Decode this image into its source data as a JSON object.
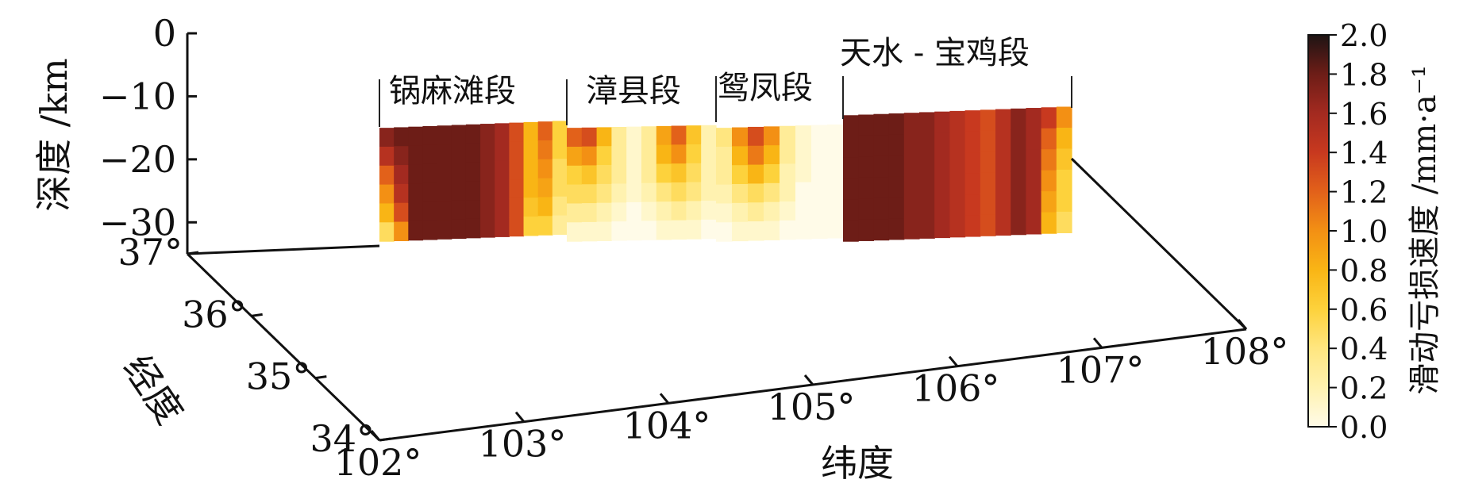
{
  "chart_data": {
    "type": "heatmap",
    "title": "",
    "depth_axis": {
      "label": "深度 /km",
      "ticks": [
        0,
        -10,
        -20,
        -30
      ],
      "tick_labels": [
        "0",
        "−10",
        "−20",
        "−30"
      ],
      "range": [
        -35,
        0
      ]
    },
    "longitude_axis": {
      "label": "纬度",
      "ticks": [
        102,
        103,
        104,
        105,
        106,
        107,
        108
      ],
      "tick_labels": [
        "102°",
        "103°",
        "104°",
        "105°",
        "106°",
        "107°",
        "108°"
      ],
      "range": [
        102,
        108
      ]
    },
    "latitude_axis": {
      "label": "经度",
      "ticks": [
        37,
        36,
        35,
        34
      ],
      "tick_labels": [
        "37°",
        "36°",
        "35°",
        "34°"
      ],
      "range": [
        34,
        37
      ]
    },
    "colorbar": {
      "label": "滑动亏损速度 /mm·a⁻¹",
      "range": [
        0,
        2.0
      ],
      "ticks": [
        "0.0",
        "0.2",
        "0.4",
        "0.6",
        "0.8",
        "1.0",
        "1.2",
        "1.4",
        "1.6",
        "1.8",
        "2.0"
      ],
      "colors": [
        "#fffbe8",
        "#fff2b0",
        "#ffe680",
        "#fdd23c",
        "#f9b515",
        "#f39014",
        "#e2611a",
        "#c8391f",
        "#a32a20",
        "#6d1d17",
        "#1e1414"
      ]
    },
    "segments": [
      {
        "name": "锅麻滩段",
        "depth_top": -15,
        "depth_bottom": -33,
        "columns": [
          [
            1.7,
            1.5,
            1.2,
            1.0,
            0.8,
            0.5
          ],
          [
            1.8,
            1.7,
            1.6,
            1.5,
            1.3,
            1.0
          ],
          [
            1.8,
            1.8,
            1.8,
            1.8,
            1.8,
            1.8
          ],
          [
            1.8,
            1.8,
            1.8,
            1.8,
            1.8,
            1.8
          ],
          [
            1.8,
            1.8,
            1.8,
            1.8,
            1.8,
            1.8
          ],
          [
            1.8,
            1.8,
            1.8,
            1.8,
            1.8,
            1.8
          ],
          [
            1.8,
            1.8,
            1.8,
            1.8,
            1.8,
            1.8
          ],
          [
            1.7,
            1.7,
            1.7,
            1.7,
            1.7,
            1.7
          ],
          [
            1.6,
            1.6,
            1.6,
            1.6,
            1.6,
            1.6
          ],
          [
            1.3,
            1.3,
            1.3,
            1.3,
            1.3,
            1.3
          ],
          [
            0.8,
            0.8,
            0.8,
            0.8,
            0.7,
            0.6
          ],
          [
            1.2,
            1.1,
            1.0,
            0.9,
            0.8,
            0.6
          ],
          [
            0.6,
            0.6,
            0.5,
            0.5,
            0.4,
            0.3
          ]
        ]
      },
      {
        "name": "漳县段",
        "depth_top": -15,
        "depth_bottom": -33,
        "columns": [
          [
            1.2,
            0.9,
            0.6,
            0.5,
            0.3,
            0.1
          ],
          [
            1.3,
            1.0,
            0.7,
            0.5,
            0.3,
            0.1
          ],
          [
            0.8,
            0.6,
            0.5,
            0.4,
            0.2,
            0.1
          ],
          [
            0.3,
            0.3,
            0.3,
            0.2,
            0.1,
            0.0
          ],
          [
            0.1,
            0.1,
            0.1,
            0.1,
            0.0,
            0.0
          ],
          [
            0.3,
            0.3,
            0.3,
            0.2,
            0.1,
            0.0
          ],
          [
            0.9,
            0.8,
            0.6,
            0.4,
            0.2,
            0.1
          ],
          [
            1.2,
            1.0,
            0.7,
            0.5,
            0.3,
            0.1
          ],
          [
            0.7,
            0.6,
            0.5,
            0.4,
            0.2,
            0.1
          ],
          [
            0.2,
            0.2,
            0.2,
            0.2,
            0.1,
            0.0
          ]
        ]
      },
      {
        "name": "鸳凤段",
        "depth_top": -15,
        "depth_bottom": -33,
        "columns": [
          [
            0.4,
            0.3,
            0.3,
            0.2,
            0.1,
            0.0
          ],
          [
            1.0,
            0.8,
            0.6,
            0.4,
            0.2,
            0.1
          ],
          [
            1.3,
            1.1,
            0.8,
            0.5,
            0.3,
            0.1
          ],
          [
            1.0,
            0.8,
            0.6,
            0.4,
            0.2,
            0.1
          ],
          [
            0.3,
            0.3,
            0.2,
            0.2,
            0.1,
            0.0
          ],
          [
            0.1,
            0.1,
            0.1,
            0.0,
            0.0,
            0.0
          ],
          [
            0.0,
            0.0,
            0.0,
            0.0,
            0.0,
            0.0
          ],
          [
            0.0,
            0.0,
            0.0,
            0.0,
            0.0,
            0.0
          ]
        ]
      },
      {
        "name": "天水 - 宝鸡段",
        "depth_top": -13,
        "depth_bottom": -33,
        "columns": [
          [
            1.8,
            1.8,
            1.8,
            1.8,
            1.8,
            1.8
          ],
          [
            1.8,
            1.8,
            1.8,
            1.8,
            1.8,
            1.8
          ],
          [
            1.8,
            1.8,
            1.8,
            1.8,
            1.8,
            1.8
          ],
          [
            1.8,
            1.8,
            1.8,
            1.8,
            1.8,
            1.8
          ],
          [
            1.7,
            1.7,
            1.7,
            1.7,
            1.7,
            1.7
          ],
          [
            1.7,
            1.7,
            1.7,
            1.7,
            1.7,
            1.7
          ],
          [
            1.6,
            1.6,
            1.6,
            1.6,
            1.6,
            1.6
          ],
          [
            1.5,
            1.5,
            1.5,
            1.5,
            1.5,
            1.5
          ],
          [
            1.4,
            1.4,
            1.4,
            1.4,
            1.4,
            1.4
          ],
          [
            1.3,
            1.3,
            1.3,
            1.3,
            1.3,
            1.3
          ],
          [
            1.5,
            1.5,
            1.5,
            1.5,
            1.5,
            1.5
          ],
          [
            1.7,
            1.7,
            1.7,
            1.7,
            1.7,
            1.7
          ],
          [
            1.6,
            1.6,
            1.6,
            1.6,
            1.6,
            1.6
          ],
          [
            1.4,
            1.2,
            1.1,
            1.0,
            0.9,
            0.8
          ],
          [
            1.0,
            0.8,
            0.7,
            0.6,
            0.6,
            0.5
          ]
        ]
      }
    ]
  }
}
